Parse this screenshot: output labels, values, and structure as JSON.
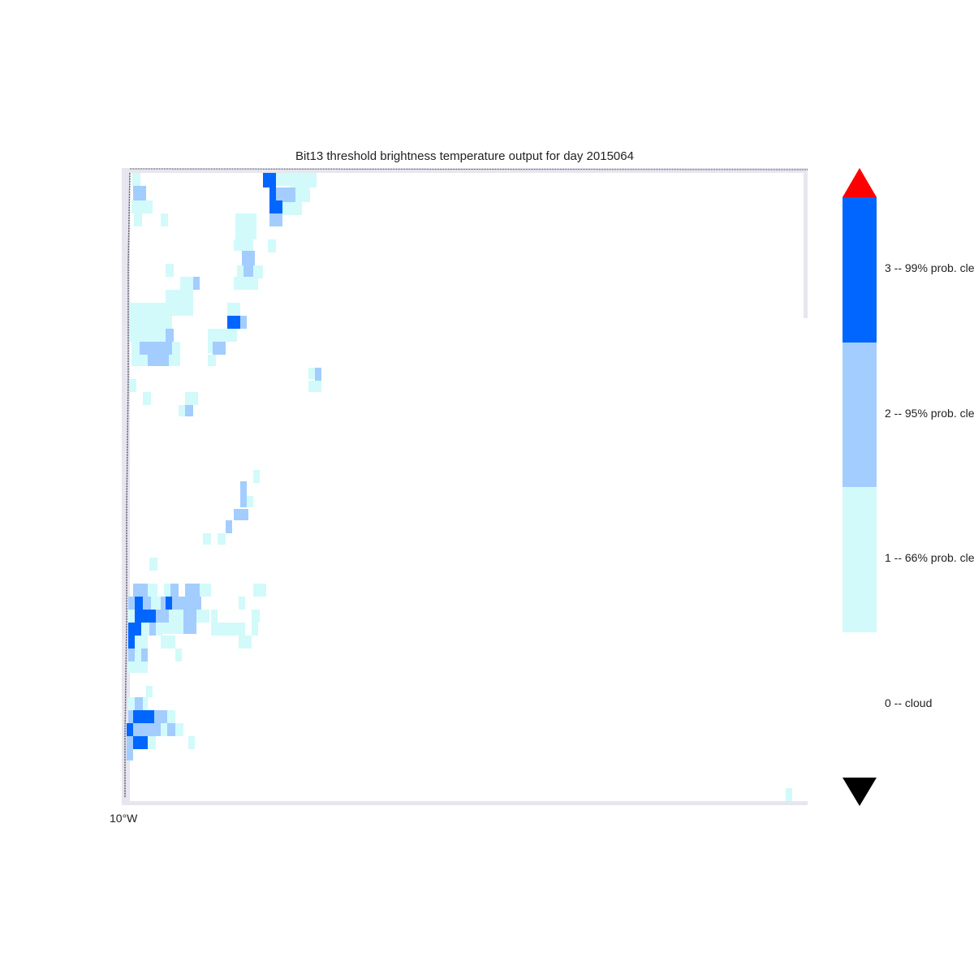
{
  "title": "Bit13 threshold brightness temperature  output for day 2015064",
  "axis": {
    "lon_tick_label": "10°W"
  },
  "legend": {
    "classes": [
      {
        "value": 3,
        "label": "3 -- 99% prob. cle",
        "color": "#0066ff"
      },
      {
        "value": 2,
        "label": "2 -- 95% prob. cle",
        "color": "#a3cdff"
      },
      {
        "value": 1,
        "label": "1 -- 66% prob. cle",
        "color": "#d2fafa"
      },
      {
        "value": 0,
        "label": "0 -- cloud",
        "color": "#ffffff"
      }
    ],
    "over_color": "#ff0000",
    "under_color": "#000000"
  },
  "colors": {
    "frame_edge": "#e6e6ee",
    "coastline": "#333344"
  }
}
